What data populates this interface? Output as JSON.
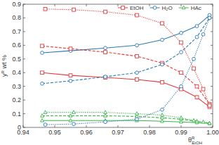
{
  "chart_data": {
    "type": "line",
    "x_label": {
      "text": "θ",
      "sup": "R",
      "sub": "EtOH"
    },
    "y_label": {
      "text": "y",
      "sup": "R",
      "after": " wt %"
    },
    "xlim": [
      0.94,
      1.0
    ],
    "xticks": [
      0.94,
      0.95,
      0.96,
      0.97,
      0.98,
      0.99,
      {
        "value": 1.0,
        "label": "1.00"
      }
    ],
    "ylim": [
      0,
      0.9
    ],
    "yticks": [
      0,
      0.1,
      0.2,
      0.3,
      0.4,
      0.5,
      0.6,
      0.7,
      0.8,
      0.9
    ],
    "grid": false,
    "legend": "upper right",
    "series": [
      {
        "name": "EtOH",
        "color": "#e8383a",
        "marker": "square",
        "line_style": "solid",
        "x": [
          0.946,
          0.955,
          0.966,
          0.976,
          0.984,
          0.99,
          0.995,
          0.999
        ],
        "values": [
          0.4,
          0.38,
          0.365,
          0.35,
          0.33,
          0.28,
          0.22,
          0.15
        ]
      },
      {
        "name": "H₂O",
        "color": "#2b7bb9",
        "marker": "circle",
        "line_style": "solid",
        "x": [
          0.946,
          0.955,
          0.966,
          0.976,
          0.984,
          0.99,
          0.995,
          0.999
        ],
        "values": [
          0.545,
          0.56,
          0.58,
          0.6,
          0.64,
          0.69,
          0.74,
          0.82
        ]
      },
      {
        "name": "HAc",
        "color": "#3cb44b",
        "marker": "triangle",
        "line_style": "solid",
        "x": [
          0.946,
          0.955,
          0.966,
          0.976,
          0.984,
          0.99,
          0.995,
          0.999
        ],
        "values": [
          0.05,
          0.05,
          0.05,
          0.05,
          0.045,
          0.04,
          0.035,
          0.03
        ]
      },
      {
        "name": "EtOH",
        "color": "#e8383a",
        "marker": "square",
        "line_style": "dashed",
        "x": [
          0.946,
          0.955,
          0.966,
          0.976,
          0.984,
          0.99,
          0.995,
          0.999
        ],
        "values": [
          0.595,
          0.575,
          0.55,
          0.52,
          0.47,
          0.4,
          0.3,
          0.17
        ]
      },
      {
        "name": "H₂O",
        "color": "#2b7bb9",
        "marker": "circle",
        "line_style": "dashed",
        "x": [
          0.946,
          0.955,
          0.966,
          0.976,
          0.984,
          0.99,
          0.995,
          0.999
        ],
        "values": [
          0.32,
          0.34,
          0.37,
          0.4,
          0.46,
          0.55,
          0.66,
          0.8
        ]
      },
      {
        "name": "HAc",
        "color": "#3cb44b",
        "marker": "triangle",
        "line_style": "dashed",
        "x": [
          0.946,
          0.955,
          0.966,
          0.976,
          0.984,
          0.99,
          0.995,
          0.999
        ],
        "values": [
          0.085,
          0.085,
          0.085,
          0.08,
          0.07,
          0.06,
          0.045,
          0.03
        ]
      },
      {
        "name": "EtOH",
        "color": "#e8383a",
        "marker": "square",
        "line_style": "dotted",
        "x": [
          0.947,
          0.956,
          0.966,
          0.976,
          0.984,
          0.99,
          0.994,
          0.997,
          0.999
        ],
        "values": [
          0.865,
          0.86,
          0.845,
          0.82,
          0.76,
          0.62,
          0.43,
          0.28,
          0.16
        ]
      },
      {
        "name": "H₂O",
        "color": "#2b7bb9",
        "marker": "circle",
        "line_style": "dotted",
        "x": [
          0.947,
          0.956,
          0.966,
          0.976,
          0.984,
          0.99,
          0.994,
          0.997,
          0.999
        ],
        "values": [
          0.02,
          0.025,
          0.04,
          0.06,
          0.13,
          0.3,
          0.5,
          0.68,
          0.8
        ]
      },
      {
        "name": "HAc",
        "color": "#3cb44b",
        "marker": "triangle",
        "line_style": "dotted",
        "x": [
          0.947,
          0.956,
          0.966,
          0.976,
          0.984,
          0.99,
          0.994,
          0.997,
          0.999
        ],
        "values": [
          0.11,
          0.11,
          0.11,
          0.1,
          0.09,
          0.07,
          0.05,
          0.04,
          0.03
        ]
      }
    ]
  }
}
